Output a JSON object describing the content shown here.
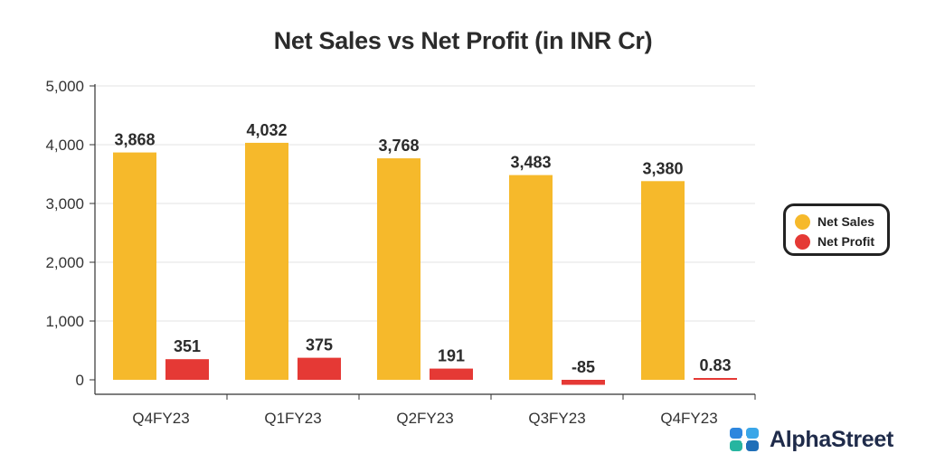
{
  "chart_data": {
    "type": "bar",
    "title": "Net Sales vs Net Profit (in INR Cr)",
    "categories": [
      "Q4FY23",
      "Q1FY23",
      "Q2FY23",
      "Q3FY23",
      "Q4FY23"
    ],
    "series": [
      {
        "name": "Net Sales",
        "color": "#F6B92B",
        "values": [
          3868,
          4032,
          3768,
          3483,
          3380
        ],
        "labels": [
          "3,868",
          "4,032",
          "3,768",
          "3,483",
          "3,380"
        ]
      },
      {
        "name": "Net Profit",
        "color": "#E53935",
        "values": [
          351,
          375,
          191,
          -85,
          0.83
        ],
        "labels": [
          "351",
          "375",
          "191",
          "-85",
          "0.83"
        ]
      }
    ],
    "yticks": [
      "0",
      "1,000",
      "2,000",
      "3,000",
      "4,000",
      "5,000"
    ],
    "ylim": [
      0,
      5000
    ],
    "grid": true,
    "legend_position": "right"
  },
  "brand": {
    "name": "AlphaStreet",
    "logo_icon": "alphastreet-logo-icon"
  }
}
